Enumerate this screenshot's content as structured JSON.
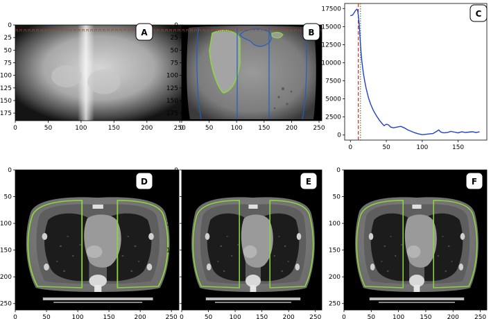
{
  "figure": {
    "colors": {
      "outline_green": "#8fd63c",
      "line_blue": "#1f3fcf",
      "ref_red": "#d62828",
      "ref_green": "#2e8b2e",
      "ct_background": "#000000"
    },
    "panels": [
      {
        "id": "A",
        "type": "image",
        "view": "coronal-projection",
        "badge": "A",
        "xticks": [
          "0",
          "50",
          "100",
          "150",
          "200",
          "250"
        ],
        "yticks": [
          "0",
          "25",
          "50",
          "75",
          "100",
          "125",
          "150",
          "175"
        ]
      },
      {
        "id": "B",
        "type": "image",
        "view": "coronal-slice-with-outlines",
        "badge": "B",
        "xticks": [
          "0",
          "50",
          "100",
          "150",
          "200",
          "250"
        ],
        "yticks": [
          "0",
          "25",
          "50",
          "75",
          "100",
          "125",
          "150",
          "175"
        ]
      },
      {
        "id": "C",
        "type": "chart",
        "badge": "C",
        "xticks": [
          "0",
          "50",
          "100",
          "150"
        ],
        "yticks": [
          "0",
          "2500",
          "5000",
          "7500",
          "10000",
          "12500",
          "15000",
          "17500"
        ]
      },
      {
        "id": "D",
        "type": "image",
        "view": "axial-slice-with-outlines",
        "badge": "D",
        "xticks": [
          "0",
          "50",
          "100",
          "150",
          "200",
          "250"
        ],
        "yticks": [
          "0",
          "50",
          "100",
          "150",
          "200",
          "250"
        ]
      },
      {
        "id": "E",
        "type": "image",
        "view": "axial-slice-with-outlines",
        "badge": "E",
        "xticks": [
          "0",
          "50",
          "100",
          "150",
          "200",
          "250"
        ],
        "yticks": [
          "0",
          "50",
          "100",
          "150",
          "200",
          "250"
        ]
      },
      {
        "id": "F",
        "type": "image",
        "view": "axial-slice-with-outlines",
        "badge": "F",
        "xticks": [
          "0",
          "50",
          "100",
          "150",
          "200",
          "250"
        ],
        "yticks": [
          "0",
          "50",
          "100",
          "150",
          "200",
          "250"
        ]
      }
    ]
  },
  "chart_data": {
    "type": "line",
    "xlim": [
      -8,
      190
    ],
    "ylim": [
      -700,
      18200
    ],
    "grid": false,
    "x": [
      0,
      3,
      5,
      7,
      9,
      10,
      11,
      12,
      13,
      14,
      15,
      16,
      18,
      20,
      22,
      25,
      28,
      32,
      36,
      40,
      44,
      47,
      50,
      53,
      56,
      60,
      65,
      70,
      75,
      80,
      85,
      90,
      95,
      100,
      105,
      110,
      115,
      120,
      123,
      126,
      130,
      135,
      140,
      145,
      150,
      155,
      160,
      165,
      170,
      175,
      180
    ],
    "y": [
      16500,
      16600,
      16900,
      17200,
      17400,
      17300,
      16500,
      15600,
      14200,
      12500,
      11200,
      10200,
      8600,
      7400,
      6400,
      5200,
      4300,
      3400,
      2700,
      2100,
      1600,
      1300,
      1500,
      1400,
      1100,
      1000,
      1100,
      1200,
      1000,
      700,
      500,
      300,
      150,
      50,
      100,
      150,
      200,
      500,
      700,
      400,
      300,
      350,
      500,
      400,
      300,
      450,
      350,
      400,
      450,
      350,
      450
    ],
    "vlines": [
      {
        "x": 11,
        "color": "red",
        "style": "dashed"
      },
      {
        "x": 14,
        "color": "green",
        "style": "dotted"
      }
    ]
  }
}
